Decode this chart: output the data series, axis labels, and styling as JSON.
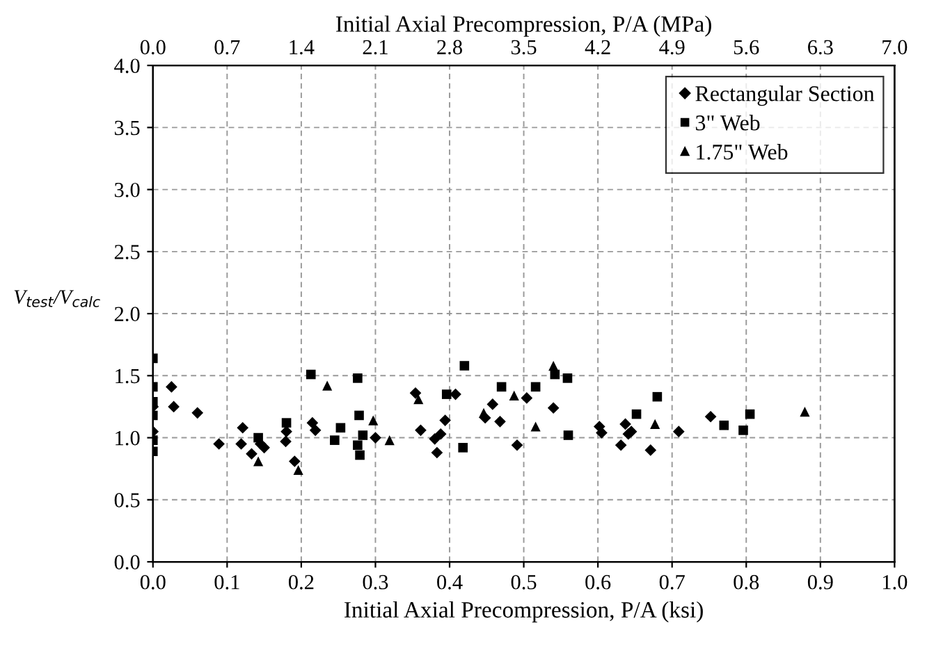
{
  "chart_data": {
    "type": "scatter",
    "xlabel": "Initial Axial Precompression, P/A (ksi)",
    "x2label": "Initial Axial Precompression, P/A (MPa)",
    "ylabel": "V$_{test}$/V$_{calc}$",
    "xlim": [
      0,
      1
    ],
    "xticks": [
      {
        "value": 0,
        "label": "0.0"
      },
      0.1,
      0.2,
      0.3,
      0.4,
      0.5,
      0.6,
      0.7,
      0.8,
      0.9,
      {
        "value": 1,
        "label": "1.0"
      }
    ],
    "x2lim": [
      0,
      7
    ],
    "x2ticks": [
      {
        "value": 0,
        "label": "0.0"
      },
      0.7,
      1.4,
      2.1,
      2.8,
      3.5,
      4.2,
      4.9,
      5.6,
      6.3,
      {
        "value": 7,
        "label": "7.0"
      }
    ],
    "ylim": [
      0,
      4
    ],
    "yticks": [
      {
        "value": 0,
        "label": "0.0"
      },
      0.5,
      {
        "value": 1,
        "label": "1.0"
      },
      1.5,
      {
        "value": 2,
        "label": "2.0"
      },
      2.5,
      {
        "value": 3,
        "label": "3.0"
      },
      3.5,
      {
        "value": 4,
        "label": "4.0"
      }
    ],
    "grid": true,
    "legend": "top right",
    "series": [
      {
        "name": "Rectangular Section",
        "color": "#000000",
        "marker": "diamond",
        "x": [
          0,
          0,
          0.025,
          0.028,
          0.06,
          0.089,
          0.121,
          0.119,
          0.133,
          0.15,
          0.145,
          0.18,
          0.179,
          0.191,
          0.215,
          0.219,
          0.3,
          0.354,
          0.361,
          0.38,
          0.388,
          0.383,
          0.394,
          0.408,
          0.458,
          0.448,
          0.468,
          0.491,
          0.504,
          0.54,
          0.602,
          0.605,
          0.637,
          0.641,
          0.645,
          0.631,
          0.671,
          0.709,
          0.752
        ],
        "values": [
          1.25,
          1.05,
          1.41,
          1.25,
          1.2,
          0.95,
          1.08,
          0.95,
          0.87,
          0.92,
          0.95,
          1.05,
          0.97,
          0.81,
          1.12,
          1.06,
          1.0,
          1.36,
          1.06,
          0.99,
          1.03,
          0.88,
          1.14,
          1.35,
          1.27,
          1.16,
          1.13,
          0.94,
          1.32,
          1.24,
          1.09,
          1.04,
          1.11,
          1.03,
          1.05,
          0.94,
          0.9,
          1.05,
          1.17
        ]
      },
      {
        "name": "3\" Web",
        "color": "#000000",
        "marker": "square",
        "x": [
          0,
          0,
          0,
          0,
          0,
          0,
          0.142,
          0.18,
          0.213,
          0.276,
          0.278,
          0.253,
          0.245,
          0.283,
          0.276,
          0.279,
          0.396,
          0.42,
          0.418,
          0.47,
          0.516,
          0.542,
          0.559,
          0.56,
          0.652,
          0.68,
          0.77,
          0.796,
          0.805
        ],
        "values": [
          1.64,
          1.41,
          1.29,
          1.18,
          0.98,
          0.89,
          1.0,
          1.12,
          1.51,
          1.48,
          1.18,
          1.08,
          0.98,
          1.02,
          0.94,
          0.86,
          1.35,
          1.58,
          0.92,
          1.41,
          1.41,
          1.51,
          1.48,
          1.02,
          1.19,
          1.33,
          1.1,
          1.06,
          1.19
        ]
      },
      {
        "name": "1.75\" Web",
        "color": "#000000",
        "marker": "triangle",
        "x": [
          0.142,
          0.196,
          0.235,
          0.297,
          0.319,
          0.358,
          0.446,
          0.487,
          0.516,
          0.54,
          0.677,
          0.879
        ],
        "values": [
          0.81,
          0.74,
          1.42,
          1.14,
          0.98,
          1.31,
          1.2,
          1.34,
          1.09,
          1.58,
          1.11,
          1.21
        ]
      }
    ]
  }
}
